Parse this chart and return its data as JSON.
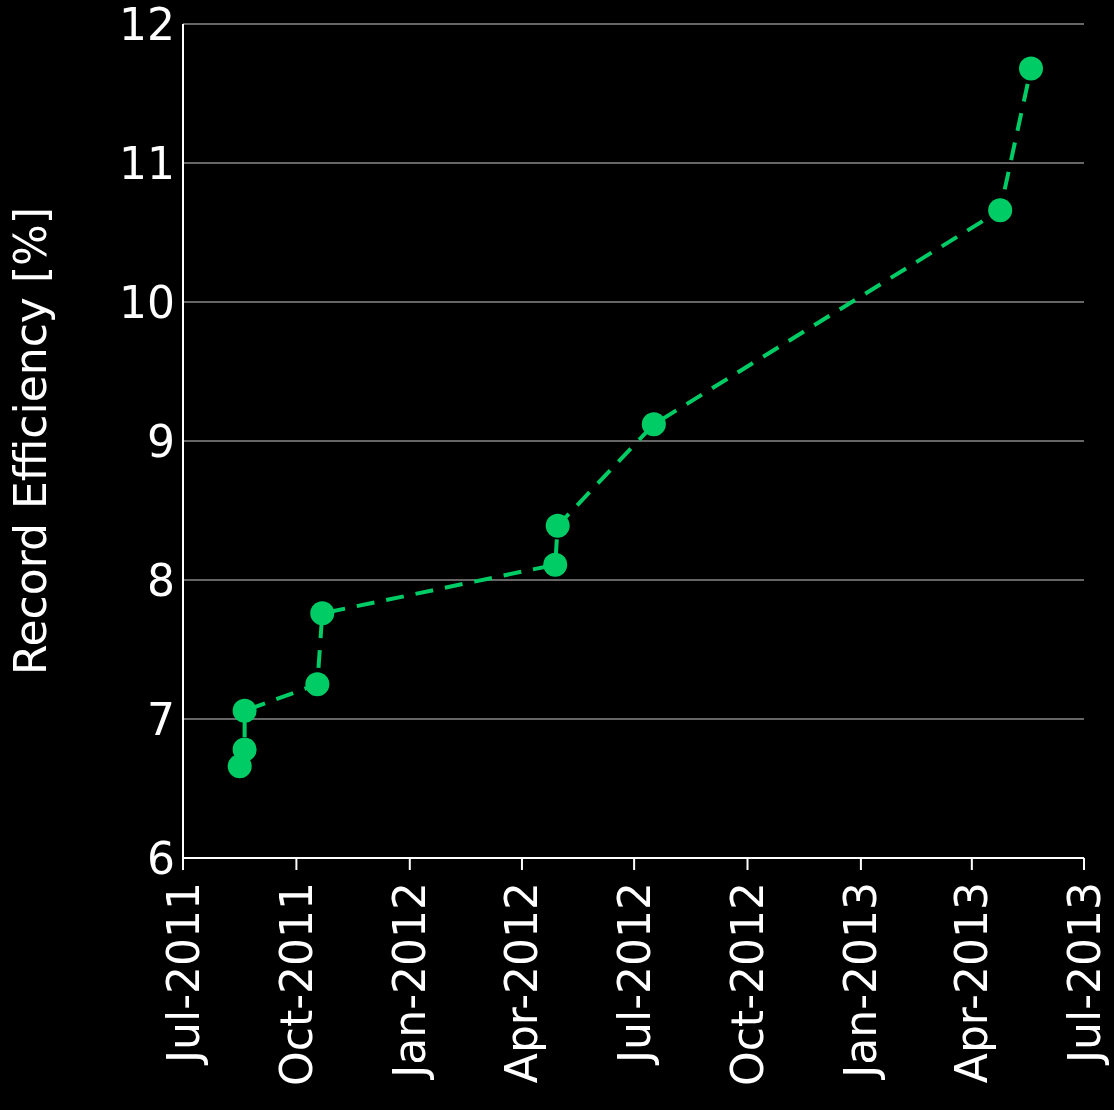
{
  "chart_data": {
    "type": "line",
    "ylabel": "Record Efficiency [%]",
    "x": [
      "2011-08-16",
      "2011-08-20",
      "2011-08-20",
      "2011-10-18",
      "2011-10-22",
      "2012-04-28",
      "2012-04-30",
      "2012-07-17",
      "2013-04-24",
      "2013-05-19"
    ],
    "values": [
      6.66,
      6.78,
      7.06,
      7.25,
      7.76,
      8.11,
      8.39,
      9.12,
      10.66,
      11.68
    ],
    "color": "#00cc66",
    "marker": "circle",
    "line_style": "dashed",
    "grid": "y",
    "xlim": [
      "2011-07-01",
      "2013-07-01"
    ],
    "xticks": [
      {
        "value": "2011-07-01",
        "label": "Jul-2011"
      },
      {
        "value": "2011-10-01",
        "label": "Oct-2011"
      },
      {
        "value": "2012-01-01",
        "label": "Jan-2012"
      },
      {
        "value": "2012-04-01",
        "label": "Apr-2012"
      },
      {
        "value": "2012-07-01",
        "label": "Jul-2012"
      },
      {
        "value": "2012-10-01",
        "label": "Oct-2012"
      },
      {
        "value": "2013-01-01",
        "label": "Jan-2013"
      },
      {
        "value": "2013-04-01",
        "label": "Apr-2013"
      },
      {
        "value": "2013-07-01",
        "label": "Jul-2013"
      }
    ],
    "ylim": [
      6,
      12
    ],
    "yticks": [
      6,
      7,
      8,
      9,
      10,
      11,
      12
    ]
  }
}
